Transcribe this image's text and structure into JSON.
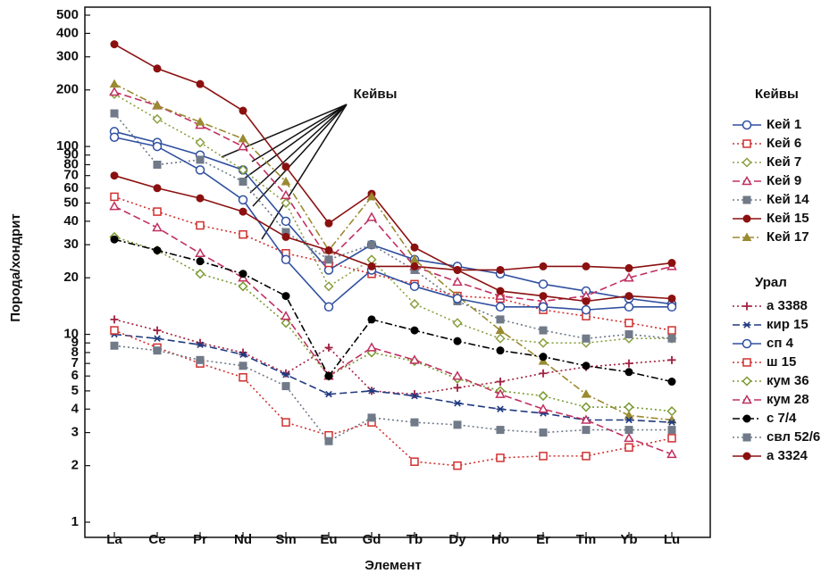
{
  "chart_data": {
    "type": "line",
    "log_y": true,
    "x_label": "Элемент",
    "y_label": "Порода/хондрит",
    "annotation": "Кейвы",
    "categories": [
      "La",
      "Ce",
      "Pr",
      "Nd",
      "Sm",
      "Eu",
      "Gd",
      "Tb",
      "Dy",
      "Ho",
      "Er",
      "Tm",
      "Yb",
      "Lu"
    ],
    "ylim": [
      1,
      500
    ],
    "yticks": [
      1,
      2,
      3,
      4,
      5,
      6,
      7,
      8,
      9,
      10,
      20,
      30,
      40,
      50,
      60,
      70,
      80,
      90,
      100,
      200,
      300,
      400,
      500
    ],
    "groups": [
      {
        "name": "Кейвы",
        "series": [
          {
            "name": "Кей 1",
            "color": "#2f4f9f",
            "marker": "circle",
            "dash": "solid",
            "values": [
              120,
              105,
              90,
              75,
              40,
              22,
              30,
              25,
              23,
              21,
              18.5,
              17,
              15.5,
              14.5
            ]
          },
          {
            "name": "Кей 6",
            "color": "#d03030",
            "marker": "square",
            "dash": "dotted",
            "values": [
              54,
              45,
              38,
              34,
              27,
              24,
              21,
              18.5,
              16,
              15.5,
              13.5,
              12.5,
              11.5,
              10.5
            ]
          },
          {
            "name": "Кей 7",
            "color": "#8aa040",
            "marker": "diamond",
            "dash": "dotted",
            "values": [
              190,
              140,
              105,
              75,
              50,
              18,
              25,
              14.5,
              11.5,
              9.5,
              9,
              9,
              9.5,
              9.5
            ]
          },
          {
            "name": "Кей 9",
            "color": "#c03060",
            "marker": "triangle",
            "dash": "dashed",
            "values": [
              195,
              165,
              130,
              100,
              55,
              25,
              42,
              23,
              19,
              16,
              15,
              16,
              20,
              23
            ]
          },
          {
            "name": "Кей 14",
            "color": "#707a88",
            "marker": "square-filled",
            "dash": "dotted",
            "values": [
              150,
              80,
              85,
              65,
              35,
              25,
              30,
              22,
              15,
              12,
              10.5,
              9.5,
              10,
              9.5
            ]
          },
          {
            "name": "Кей 15",
            "color": "#8b1010",
            "marker": "dot",
            "dash": "solid",
            "values": [
              350,
              260,
              215,
              155,
              78,
              39,
              56,
              29,
              22,
              22,
              23,
              23,
              22.5,
              24
            ]
          },
          {
            "name": "Кей 17",
            "color": "#9a8a30",
            "marker": "triangle-filled",
            "dash": "dashdot",
            "values": [
              215,
              165,
              135,
              110,
              65,
              28,
              54,
              25,
              16,
              10.5,
              7.2,
              4.8,
              3.7,
              3.5
            ]
          }
        ]
      },
      {
        "name": "Урал",
        "series": [
          {
            "name": "а 3388",
            "color": "#a02040",
            "marker": "plus",
            "dash": "dotted",
            "values": [
              12,
              10.5,
              9,
              8,
              6.2,
              8.5,
              5,
              4.8,
              5.2,
              5.6,
              6.2,
              6.7,
              7,
              7.3
            ]
          },
          {
            "name": "кир 15",
            "color": "#203a80",
            "marker": "asterisk",
            "dash": "dashed",
            "values": [
              10,
              9.5,
              8.8,
              7.8,
              6.1,
              4.8,
              5,
              4.7,
              4.3,
              4,
              3.8,
              3.5,
              3.5,
              3.4
            ]
          },
          {
            "name": "сп 4",
            "color": "#3050a0",
            "marker": "circle",
            "dash": "solid",
            "values": [
              112,
              100,
              75,
              52,
              25,
              14,
              22,
              18,
              15.5,
              14,
              14,
              13.5,
              14,
              14
            ]
          },
          {
            "name": "ш 15",
            "color": "#d03030",
            "marker": "square",
            "dash": "dotted",
            "values": [
              10.5,
              8.5,
              7,
              5.9,
              3.4,
              2.9,
              3.4,
              2.1,
              2,
              2.2,
              2.25,
              2.25,
              2.5,
              2.8
            ]
          },
          {
            "name": "кум 36",
            "color": "#7a9a30",
            "marker": "diamond",
            "dash": "dotted",
            "values": [
              33,
              28,
              21,
              18,
              11.5,
              6,
              8,
              7.2,
              5.8,
              5,
              4.7,
              4.1,
              4.1,
              3.9
            ]
          },
          {
            "name": "кум 28",
            "color": "#c03060",
            "marker": "triangle",
            "dash": "dashed",
            "values": [
              48,
              37,
              27,
              20,
              12.5,
              6,
              8.5,
              7.3,
              6,
              4.8,
              4,
              3.5,
              2.8,
              2.3
            ]
          },
          {
            "name": "с 7/4",
            "color": "#000000",
            "marker": "dot",
            "dash": "dashdot",
            "values": [
              32,
              28,
              24.5,
              21,
              16,
              6,
              12,
              10.5,
              9.2,
              8.2,
              7.6,
              6.8,
              6.3,
              5.6
            ]
          },
          {
            "name": "свл 52/6",
            "color": "#707a88",
            "marker": "square-filled",
            "dash": "dotted",
            "values": [
              8.7,
              8.2,
              7.3,
              6.8,
              5.3,
              2.7,
              3.6,
              3.4,
              3.3,
              3.1,
              3,
              3.1,
              3.1,
              3.1
            ]
          },
          {
            "name": "а 3324",
            "color": "#8b1010",
            "marker": "dot",
            "dash": "solid",
            "values": [
              70,
              60,
              53,
              45,
              33,
              28,
              23,
              23,
              22,
              17,
              16,
              15,
              16,
              15.5
            ]
          }
        ]
      }
    ]
  }
}
